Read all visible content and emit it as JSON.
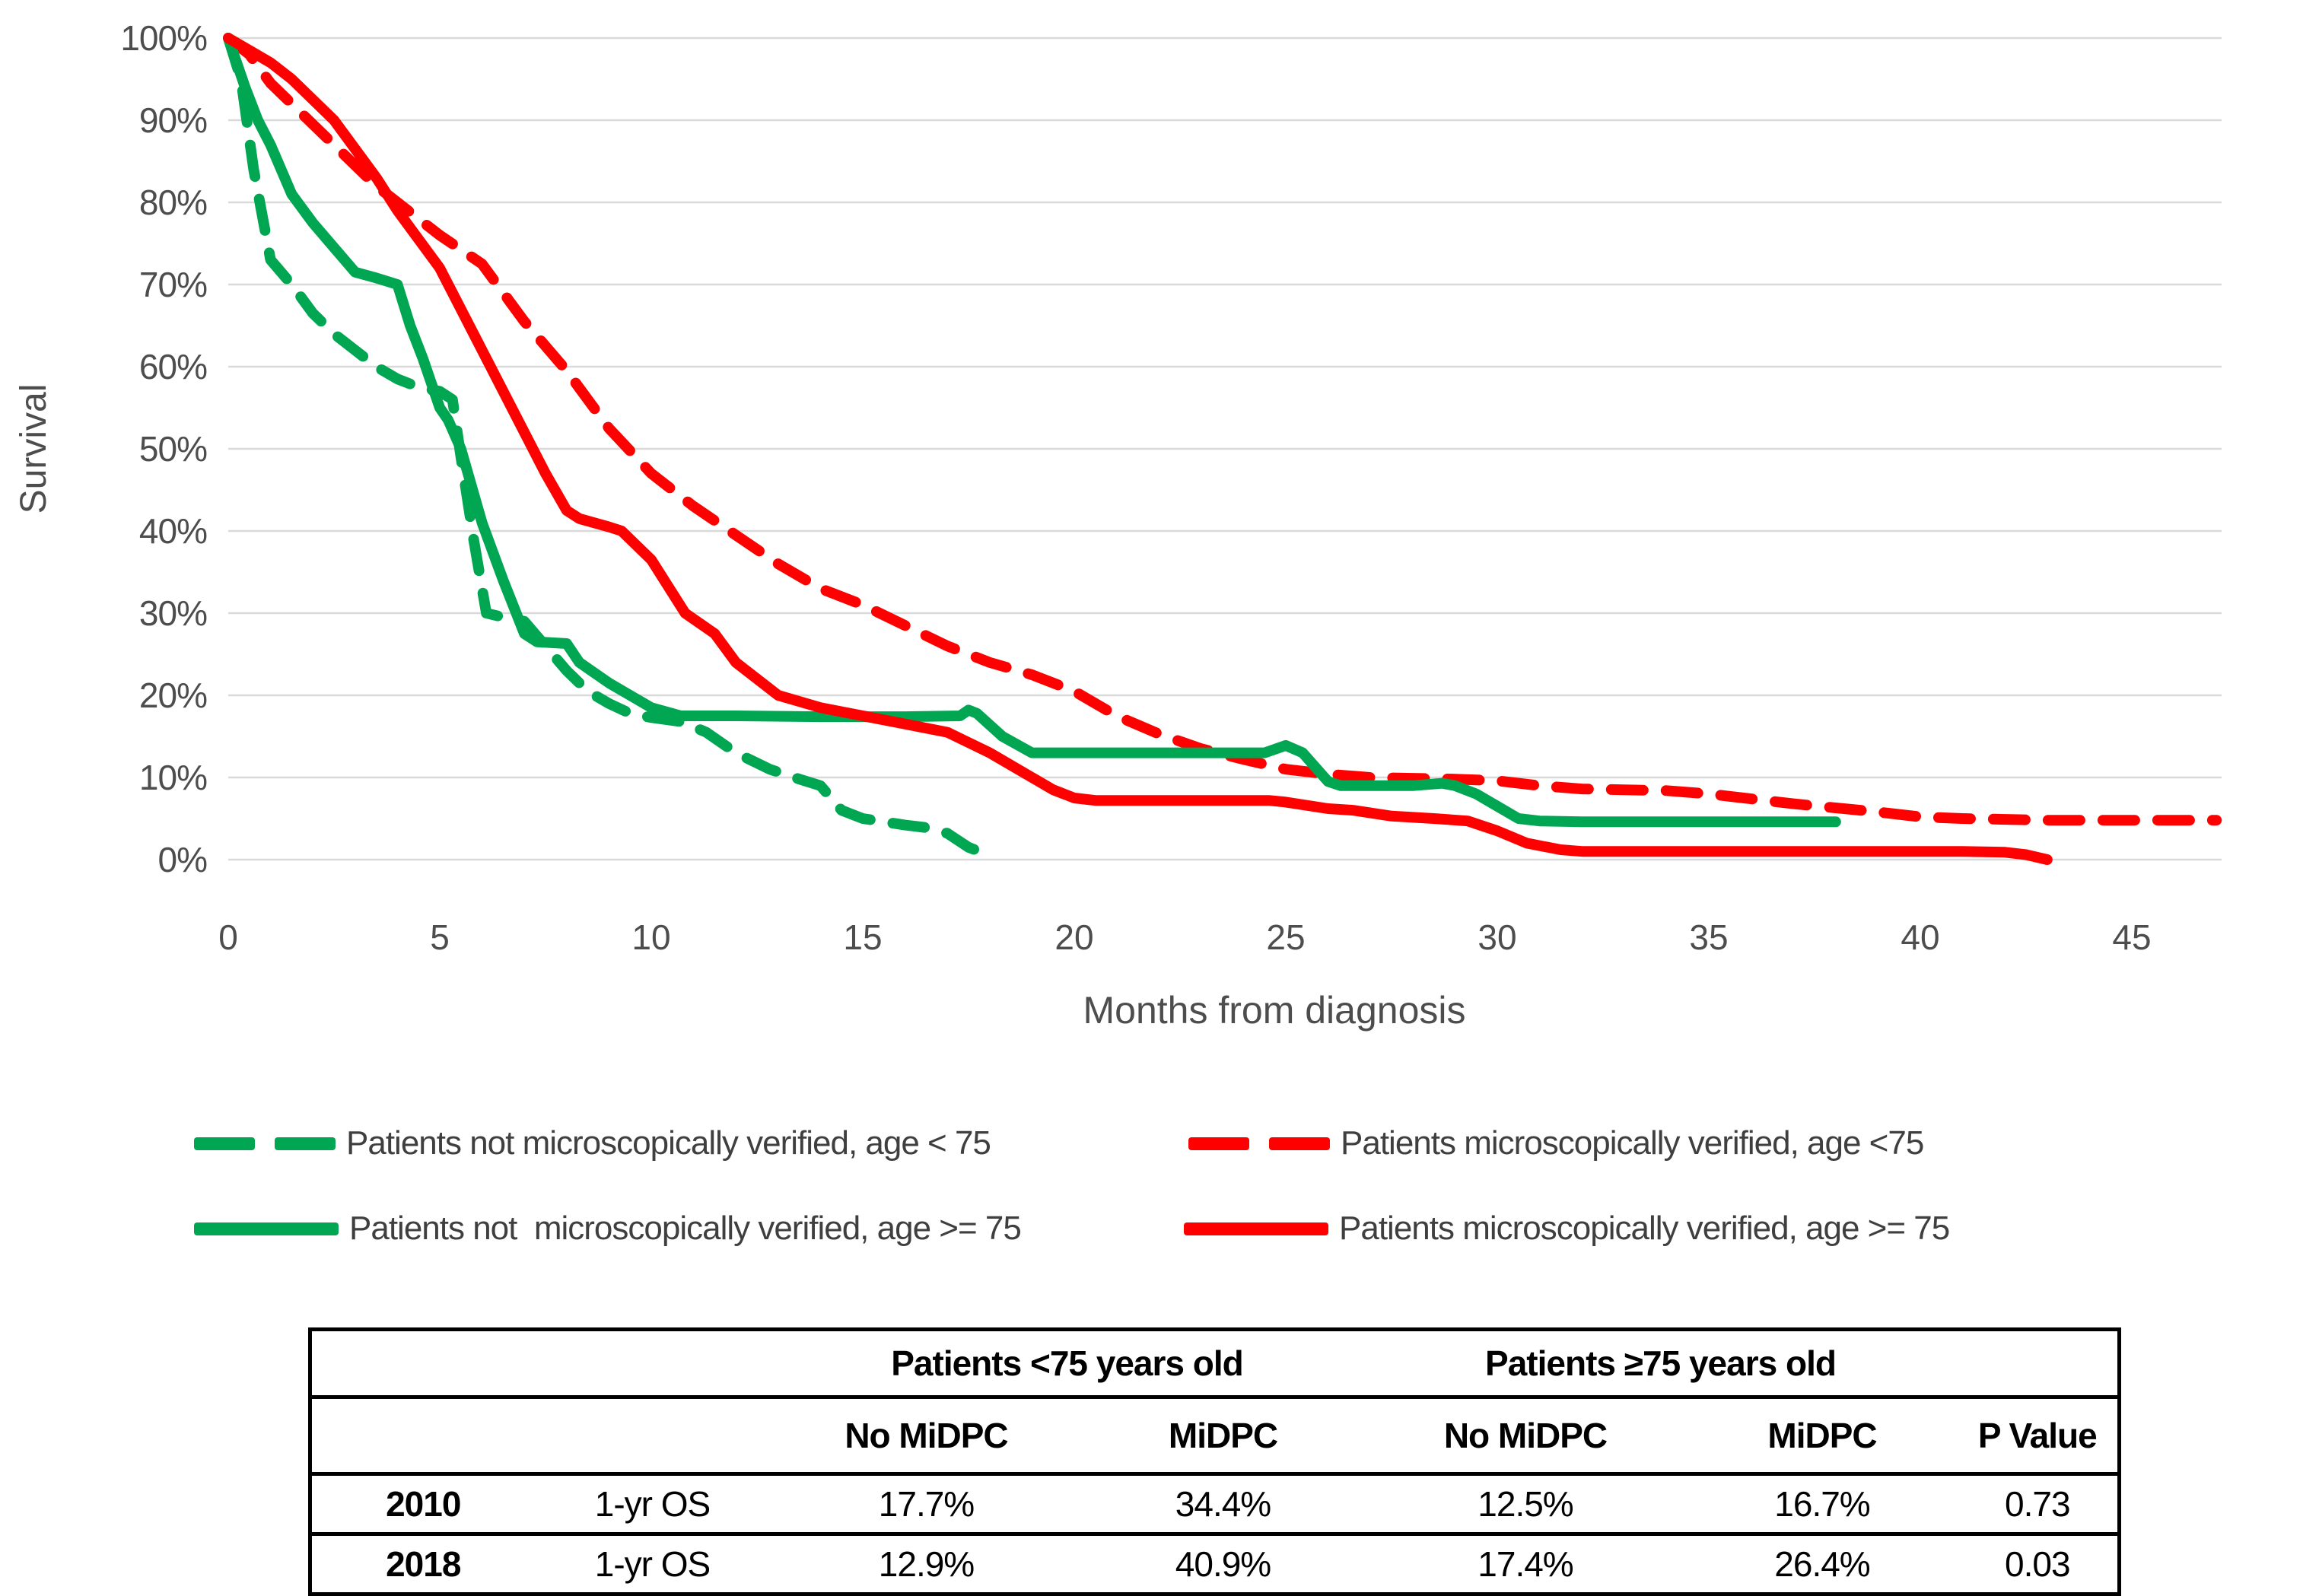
{
  "colors": {
    "green": "#00A651",
    "red": "#FF0000",
    "grid": "#D9D9D9",
    "axis_text": "#4D4D4D",
    "table_border": "#000000"
  },
  "chart": {
    "y_axis_title": "Survival",
    "x_axis_title": "Months from diagnosis"
  },
  "chart_data": {
    "type": "line",
    "title": "",
    "xlabel": "Months from diagnosis",
    "ylabel": "Survival",
    "xlim": [
      0,
      47.5
    ],
    "ylim": [
      0,
      100
    ],
    "x_tick_values": [
      0,
      5,
      10,
      15,
      20,
      25,
      30,
      35,
      40,
      45
    ],
    "x_tick_labels": [
      "0",
      "5",
      "10",
      "15",
      "20",
      "25",
      "30",
      "35",
      "40",
      "45"
    ],
    "y_tick_values": [
      100,
      90,
      80,
      70,
      60,
      50,
      40,
      30,
      20,
      10,
      0
    ],
    "y_tick_labels": [
      "100%",
      "90%",
      "80%",
      "70%",
      "60%",
      "50%",
      "40%",
      "30%",
      "20%",
      "10%",
      "0%"
    ],
    "grid": true,
    "legend_position": "bottom",
    "series": [
      {
        "name": "Patients not microscopically verified, age < 75",
        "color": "#00A651",
        "dashed": true,
        "points": [
          [
            0,
            100
          ],
          [
            0.3,
            95
          ],
          [
            0.6,
            84
          ],
          [
            1,
            73
          ],
          [
            1.5,
            70
          ],
          [
            2,
            66.5
          ],
          [
            2.5,
            64
          ],
          [
            3,
            62
          ],
          [
            3.5,
            60
          ],
          [
            4,
            58.5
          ],
          [
            4.5,
            57.5
          ],
          [
            5,
            57
          ],
          [
            5.3,
            56
          ],
          [
            5.5,
            49
          ],
          [
            5.8,
            39
          ],
          [
            6.1,
            30
          ],
          [
            6.5,
            29.5
          ],
          [
            7,
            29
          ],
          [
            7.5,
            26
          ],
          [
            8,
            23
          ],
          [
            8.5,
            20.5
          ],
          [
            9,
            19
          ],
          [
            9.5,
            17.8
          ],
          [
            10,
            17.3
          ],
          [
            10.7,
            16.8
          ],
          [
            11.3,
            15.5
          ],
          [
            12,
            13
          ],
          [
            12.8,
            11
          ],
          [
            13.5,
            9.8
          ],
          [
            14,
            9
          ],
          [
            14.5,
            6
          ],
          [
            15,
            5
          ],
          [
            15.5,
            4.6
          ],
          [
            16,
            4.2
          ],
          [
            16.5,
            3.9
          ],
          [
            17,
            3.2
          ],
          [
            17.5,
            1.5
          ],
          [
            17.9,
            0.7
          ]
        ]
      },
      {
        "name": "Patients microscopically verified, age <75",
        "color": "#FF0000",
        "dashed": true,
        "points": [
          [
            0,
            100
          ],
          [
            0.5,
            98
          ],
          [
            1,
            94.5
          ],
          [
            1.5,
            92
          ],
          [
            2,
            89.5
          ],
          [
            2.5,
            87
          ],
          [
            3,
            84.5
          ],
          [
            3.5,
            82
          ],
          [
            4,
            80
          ],
          [
            4.5,
            78
          ],
          [
            5,
            76
          ],
          [
            6,
            72.5
          ],
          [
            7,
            65.5
          ],
          [
            8,
            59.5
          ],
          [
            9,
            52.5
          ],
          [
            10,
            47
          ],
          [
            11,
            43
          ],
          [
            12,
            39.5
          ],
          [
            13,
            36
          ],
          [
            14,
            33
          ],
          [
            15,
            31
          ],
          [
            16,
            28.5
          ],
          [
            17,
            26
          ],
          [
            18,
            24
          ],
          [
            19,
            22.5
          ],
          [
            20,
            20.5
          ],
          [
            21,
            17.5
          ],
          [
            22,
            15.3
          ],
          [
            23,
            13.5
          ],
          [
            24,
            12.2
          ],
          [
            25,
            11
          ],
          [
            26,
            10.4
          ],
          [
            27,
            10
          ],
          [
            28,
            9.9
          ],
          [
            29,
            9.8
          ],
          [
            30,
            9.6
          ],
          [
            31,
            9
          ],
          [
            32,
            8.6
          ],
          [
            33,
            8.5
          ],
          [
            34,
            8.4
          ],
          [
            35,
            8
          ],
          [
            36,
            7.4
          ],
          [
            37,
            6.8
          ],
          [
            38,
            6.3
          ],
          [
            39,
            5.8
          ],
          [
            40,
            5.2
          ],
          [
            41,
            5
          ],
          [
            42,
            4.9
          ],
          [
            43,
            4.8
          ],
          [
            44,
            4.8
          ],
          [
            45,
            4.8
          ],
          [
            46,
            4.8
          ],
          [
            47,
            4.8
          ]
        ]
      },
      {
        "name": "Patients not  microscopically verified, age >= 75",
        "color": "#00A651",
        "dashed": false,
        "points": [
          [
            0,
            100
          ],
          [
            0.4,
            94
          ],
          [
            0.7,
            90
          ],
          [
            1,
            87
          ],
          [
            1.5,
            81
          ],
          [
            2,
            77.5
          ],
          [
            2.5,
            74.5
          ],
          [
            3,
            71.5
          ],
          [
            3.5,
            70.8
          ],
          [
            4,
            70
          ],
          [
            4.3,
            65
          ],
          [
            4.6,
            61
          ],
          [
            5,
            55
          ],
          [
            5.2,
            53.5
          ],
          [
            5.5,
            50
          ],
          [
            6,
            41
          ],
          [
            6.5,
            34
          ],
          [
            7,
            27.5
          ],
          [
            7.3,
            26.5
          ],
          [
            8,
            26.3
          ],
          [
            8.3,
            24
          ],
          [
            9,
            21.5
          ],
          [
            9.5,
            20
          ],
          [
            10,
            18.5
          ],
          [
            10.7,
            17.5
          ],
          [
            12,
            17.5
          ],
          [
            14,
            17.4
          ],
          [
            16,
            17.4
          ],
          [
            17.3,
            17.5
          ],
          [
            17.5,
            18.2
          ],
          [
            17.7,
            17.8
          ],
          [
            18.3,
            15
          ],
          [
            19,
            13
          ],
          [
            20,
            13
          ],
          [
            22,
            13
          ],
          [
            24,
            13
          ],
          [
            24.5,
            13
          ],
          [
            25,
            13.9
          ],
          [
            25.4,
            13
          ],
          [
            26,
            9.5
          ],
          [
            26.3,
            9
          ],
          [
            27,
            9
          ],
          [
            28,
            9
          ],
          [
            28.7,
            9.3
          ],
          [
            29,
            9
          ],
          [
            29.5,
            8
          ],
          [
            30,
            6.5
          ],
          [
            30.5,
            5
          ],
          [
            31,
            4.7
          ],
          [
            32,
            4.6
          ],
          [
            34,
            4.6
          ],
          [
            36,
            4.6
          ],
          [
            38,
            4.6
          ]
        ]
      },
      {
        "name": "Patients microscopically verified, age >= 75",
        "color": "#FF0000",
        "dashed": false,
        "points": [
          [
            0,
            100
          ],
          [
            0.5,
            98.5
          ],
          [
            1,
            97
          ],
          [
            1.5,
            95
          ],
          [
            2,
            92.5
          ],
          [
            2.5,
            90
          ],
          [
            3,
            86.5
          ],
          [
            3.5,
            83
          ],
          [
            4,
            79
          ],
          [
            4.5,
            75.5
          ],
          [
            5,
            72
          ],
          [
            5.5,
            67
          ],
          [
            6,
            62
          ],
          [
            6.5,
            57
          ],
          [
            7,
            52
          ],
          [
            7.5,
            47
          ],
          [
            8,
            42.5
          ],
          [
            8.3,
            41.5
          ],
          [
            9,
            40.5
          ],
          [
            9.3,
            40
          ],
          [
            10,
            36.5
          ],
          [
            10.8,
            30
          ],
          [
            11.5,
            27.5
          ],
          [
            12,
            24
          ],
          [
            13,
            20
          ],
          [
            14,
            18.5
          ],
          [
            15,
            17.5
          ],
          [
            16,
            16.5
          ],
          [
            17,
            15.5
          ],
          [
            18,
            13
          ],
          [
            19,
            10
          ],
          [
            19.5,
            8.5
          ],
          [
            20,
            7.5
          ],
          [
            20.5,
            7.2
          ],
          [
            22,
            7.2
          ],
          [
            24,
            7.2
          ],
          [
            24.6,
            7.2
          ],
          [
            25,
            7
          ],
          [
            26,
            6.2
          ],
          [
            26.6,
            6
          ],
          [
            27.5,
            5.3
          ],
          [
            28.5,
            5
          ],
          [
            29.3,
            4.7
          ],
          [
            30,
            3.5
          ],
          [
            30.7,
            2
          ],
          [
            31.5,
            1.2
          ],
          [
            32,
            1
          ],
          [
            34,
            1
          ],
          [
            36,
            1
          ],
          [
            38,
            1
          ],
          [
            40,
            1
          ],
          [
            41,
            1
          ],
          [
            42,
            0.9
          ],
          [
            42.5,
            0.6
          ],
          [
            43,
            0
          ]
        ]
      }
    ]
  },
  "legend": {
    "items": [
      {
        "label": "Patients not microscopically verified, age < 75",
        "color": "#00A651",
        "dashed": true
      },
      {
        "label": "Patients microscopically verified, age <75",
        "color": "#FF0000",
        "dashed": true
      },
      {
        "label": "Patients not  microscopically verified, age >= 75",
        "color": "#00A651",
        "dashed": false
      },
      {
        "label": "Patients microscopically verified, age >= 75",
        "color": "#FF0000",
        "dashed": false
      }
    ]
  },
  "table": {
    "group_headers": [
      "Patients <75 years old",
      "Patients ≥75 years old"
    ],
    "col_headers": [
      "No MiDPC",
      "MiDPC",
      "No MiDPC",
      "MiDPC",
      "P Value"
    ],
    "rows": [
      {
        "year": "2010",
        "metric": "1-yr OS",
        "values": [
          "17.7%",
          "34.4%",
          "12.5%",
          "16.7%",
          "0.73"
        ]
      },
      {
        "year": "2018",
        "metric": "1-yr OS",
        "values": [
          "12.9%",
          "40.9%",
          "17.4%",
          "26.4%",
          "0.03"
        ]
      }
    ]
  }
}
